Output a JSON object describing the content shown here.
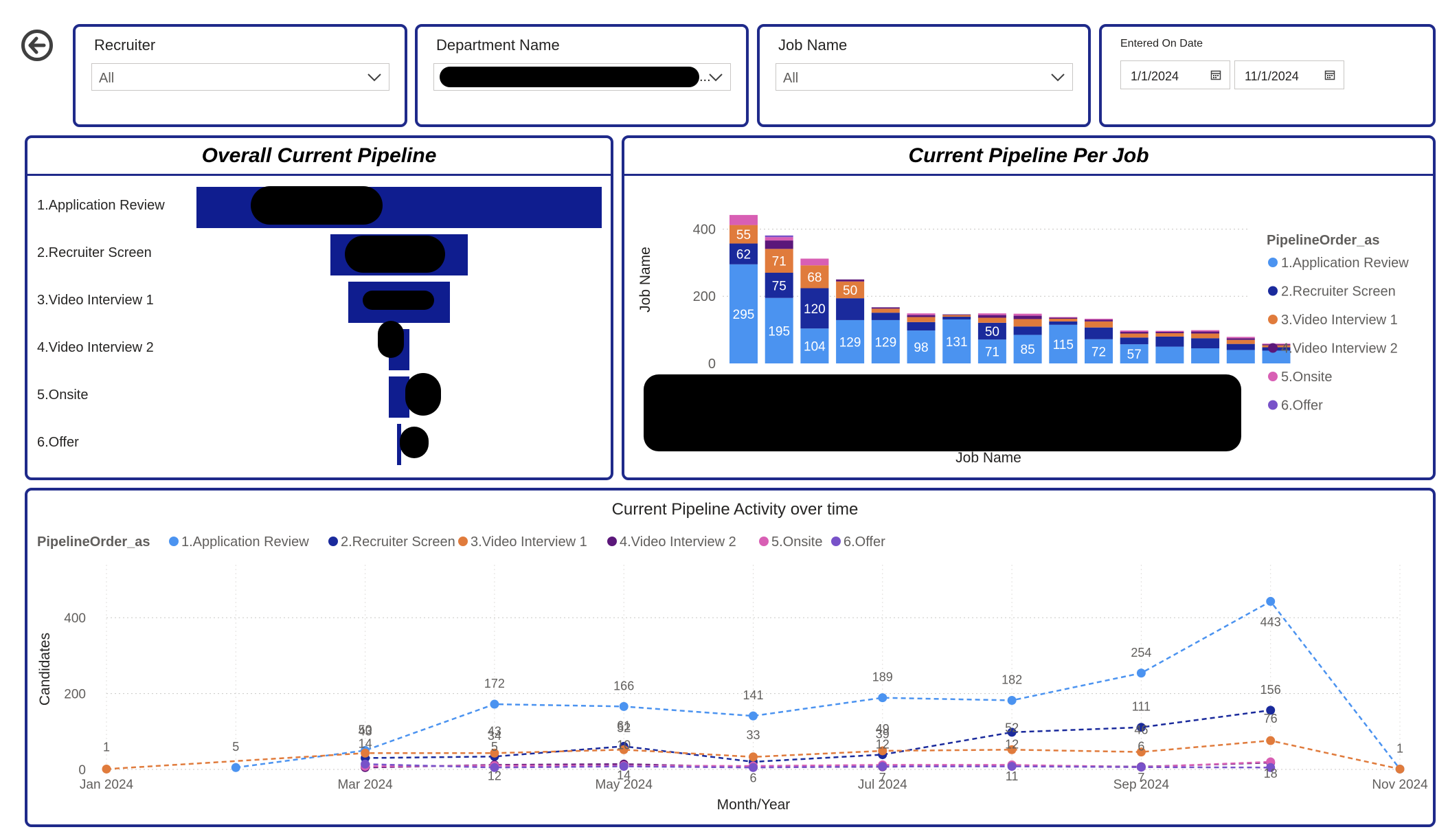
{
  "filters": {
    "recruiter": {
      "title": "Recruiter",
      "value": "All"
    },
    "department": {
      "title": "Department Name",
      "value": "..."
    },
    "job": {
      "title": "Job Name",
      "value": "All"
    },
    "date": {
      "title": "Entered On Date",
      "start": "1/1/2024",
      "end": "11/1/2024"
    }
  },
  "icons": {
    "back": "back-arrow-icon",
    "dropdown": "chevron-down-icon",
    "calendar": "calendar-icon"
  },
  "colors": {
    "panel_border": "#1f2a8a",
    "funnel_bar": "#0f1d8f",
    "stages": [
      "#4b93f0",
      "#1a2a9c",
      "#e07b3c",
      "#5b177a",
      "#d85fb4",
      "#7852c9"
    ]
  },
  "overall_pipeline": {
    "title": "Overall Current Pipeline",
    "stages": [
      {
        "label": "1.Application Review",
        "share": 1.0
      },
      {
        "label": "2.Recruiter Screen",
        "share": 0.34
      },
      {
        "label": "3.Video Interview 1",
        "share": 0.25
      },
      {
        "label": "4.Video Interview 2",
        "share": 0.05
      },
      {
        "label": "5.Onsite",
        "share": 0.05
      },
      {
        "label": "6.Offer",
        "share": 0.01
      }
    ]
  },
  "pipeline_per_job": {
    "title": "Current Pipeline Per Job",
    "chart_data": {
      "type": "bar",
      "stacked": true,
      "xlabel": "Job Name",
      "ylabel": "Job Name",
      "ylim": [
        0,
        450
      ],
      "yticks": [
        "0",
        "200",
        "400"
      ],
      "legend_title": "PipelineOrder_as",
      "legend_position": "right",
      "series": [
        {
          "name": "1.Application Review",
          "values": [
            295,
            195,
            104,
            129,
            129,
            98,
            131,
            71,
            85,
            115,
            72,
            57,
            50,
            45,
            40,
            38
          ],
          "labels": [
            "295",
            "195",
            "104",
            "129",
            "129",
            "98",
            "131",
            "71",
            "85",
            "115",
            "72",
            "57",
            "",
            "",
            "",
            ""
          ]
        },
        {
          "name": "2.Recruiter Screen",
          "values": [
            62,
            75,
            120,
            65,
            22,
            25,
            8,
            50,
            25,
            10,
            35,
            20,
            30,
            30,
            18,
            10
          ],
          "labels": [
            "62",
            "75",
            "120",
            "",
            "",
            "",
            "",
            "50",
            "",
            "",
            "",
            "",
            "",
            "",
            "",
            ""
          ]
        },
        {
          "name": "3.Video Interview 1",
          "values": [
            55,
            71,
            68,
            50,
            12,
            15,
            5,
            15,
            22,
            8,
            18,
            12,
            10,
            14,
            12,
            6
          ],
          "labels": [
            "55",
            "71",
            "68",
            "50",
            "",
            "",
            "",
            "",
            "",
            "",
            "",
            "",
            "",
            "",
            "",
            ""
          ]
        },
        {
          "name": "4.Video Interview 2",
          "values": [
            0,
            25,
            0,
            6,
            4,
            6,
            2,
            8,
            10,
            3,
            5,
            5,
            4,
            6,
            5,
            3
          ],
          "labels": []
        },
        {
          "name": "5.Onsite",
          "values": [
            30,
            10,
            20,
            0,
            0,
            5,
            0,
            5,
            6,
            2,
            3,
            4,
            3,
            4,
            4,
            2
          ],
          "labels": []
        },
        {
          "name": "6.Offer",
          "values": [
            0,
            5,
            0,
            0,
            0,
            0,
            0,
            0,
            0,
            0,
            0,
            0,
            0,
            0,
            0,
            0
          ],
          "labels": []
        }
      ]
    }
  },
  "activity": {
    "title": "Current Pipeline Activity over time",
    "chart_data": {
      "type": "line",
      "xlabel": "Month/Year",
      "ylabel": "Candidates",
      "ylim": [
        0,
        480
      ],
      "yticks": [
        "0",
        "200",
        "400"
      ],
      "xticks": [
        "Jan 2024",
        "Mar 2024",
        "May 2024",
        "Jul 2024",
        "Sep 2024",
        "Nov 2024"
      ],
      "x": [
        "2024-01",
        "2024-02",
        "2024-03",
        "2024-04",
        "2024-05",
        "2024-06",
        "2024-07",
        "2024-08",
        "2024-09",
        "2024-10",
        "2024-11"
      ],
      "legend_title": "PipelineOrder_as",
      "legend_position": "top-left",
      "series": [
        {
          "name": "1.Application Review",
          "values": [
            null,
            5,
            50,
            172,
            166,
            141,
            189,
            182,
            254,
            443,
            1
          ],
          "labels": [
            null,
            "5",
            "50",
            "172",
            "166",
            "141",
            "189",
            "182",
            "254",
            "443",
            "1"
          ]
        },
        {
          "name": "2.Recruiter Screen",
          "values": [
            null,
            null,
            30,
            34,
            61,
            20,
            39,
            98,
            111,
            156,
            null
          ],
          "labels": [
            null,
            null,
            "",
            "34",
            "61",
            "",
            "39",
            "",
            "111",
            "156",
            null
          ]
        },
        {
          "name": "3.Video Interview 1",
          "values": [
            1,
            null,
            43,
            43,
            52,
            33,
            49,
            52,
            46,
            76,
            1
          ],
          "labels": [
            "1",
            null,
            "43",
            "43",
            "52",
            "33",
            "49",
            "52",
            "46",
            "76",
            ""
          ]
        },
        {
          "name": "4.Video Interview 2",
          "values": [
            null,
            null,
            5,
            12,
            14,
            6,
            7,
            11,
            7,
            18,
            null
          ],
          "labels": [
            null,
            null,
            "",
            "12",
            "14",
            "6",
            "7",
            "11",
            "7",
            "18",
            null
          ]
        },
        {
          "name": "5.Onsite",
          "values": [
            null,
            null,
            8,
            10,
            10,
            9,
            12,
            12,
            6,
            20,
            null
          ],
          "labels": [
            null,
            null,
            "",
            "",
            "10",
            "",
            "12",
            "12",
            "6",
            "",
            null
          ]
        },
        {
          "name": "6.Offer",
          "values": [
            null,
            null,
            14,
            5,
            8,
            5,
            8,
            8,
            6,
            5,
            null
          ],
          "labels": [
            null,
            null,
            "14",
            "5",
            "",
            "",
            "",
            "",
            "",
            "",
            null
          ]
        }
      ]
    }
  }
}
